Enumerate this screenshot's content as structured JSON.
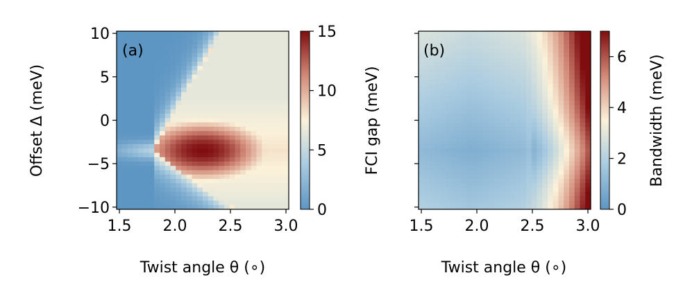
{
  "chart_data": [
    {
      "type": "heatmap",
      "panel_label": "(a)",
      "xlabel": "Twist angle θ (∘)",
      "ylabel": "Offset Δ (meV)",
      "xlim": [
        1.475,
        3.025
      ],
      "ylim": [
        -10.25,
        10.25
      ],
      "xticks": [
        1.5,
        2.0,
        2.5,
        3.0
      ],
      "xtick_labels": [
        "1.5",
        "2.0",
        "2.5",
        "3.0"
      ],
      "yticks": [
        10,
        5,
        0,
        -5,
        -10
      ],
      "ytick_labels": [
        "10",
        "5",
        "0",
        "−5",
        "−10"
      ],
      "colorbar": {
        "label": "FCI gap (meV)",
        "range": [
          0,
          15
        ],
        "ticks": [
          15,
          10,
          5,
          0
        ],
        "tick_labels": [
          "15",
          "10",
          "5",
          "0"
        ],
        "colormap": "RdBu_r"
      },
      "grid": {
        "nx": 32,
        "ny": 41
      },
      "description_of_values": "low (~0-3) in upper-left and lower-left wedges; ridge-like maximum ~15 meV near theta=2.25, Delta=-3.5; ~8 meV along the upper boundary diagonal"
    },
    {
      "type": "heatmap",
      "panel_label": "(b)",
      "xlabel": "Twist angle θ (∘)",
      "ylabel": "",
      "xlim": [
        1.475,
        3.025
      ],
      "ylim": [
        -10.25,
        10.25
      ],
      "xticks": [
        1.5,
        2.0,
        2.5,
        3.0
      ],
      "xtick_labels": [
        "1.5",
        "2.0",
        "2.5",
        "3.0"
      ],
      "yticks": [
        10,
        5,
        0,
        -5,
        -10
      ],
      "ytick_labels": [],
      "colorbar": {
        "label": "Bandwidth (meV)",
        "range": [
          0,
          7
        ],
        "ticks": [
          6,
          4,
          2,
          0
        ],
        "tick_labels": [
          "6",
          "4",
          "2",
          "0"
        ],
        "colormap": "RdBu_r"
      },
      "grid": {
        "nx": 32,
        "ny": 41
      },
      "description_of_values": "minimum ~1 meV near theta=1.95, Delta=-3.5; increases to the right, ~7 meV at theta=3.0"
    }
  ]
}
